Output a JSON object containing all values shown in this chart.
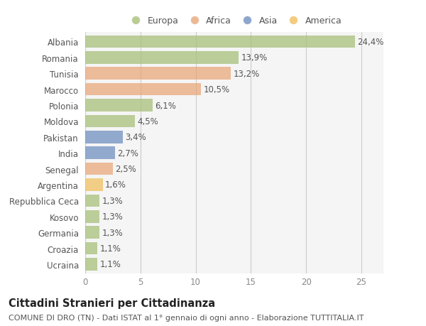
{
  "categories": [
    "Albania",
    "Romania",
    "Tunisia",
    "Marocco",
    "Polonia",
    "Moldova",
    "Pakistan",
    "India",
    "Senegal",
    "Argentina",
    "Repubblica Ceca",
    "Kosovo",
    "Germania",
    "Croazia",
    "Ucraina"
  ],
  "values": [
    24.4,
    13.9,
    13.2,
    10.5,
    6.1,
    4.5,
    3.4,
    2.7,
    2.5,
    1.6,
    1.3,
    1.3,
    1.3,
    1.1,
    1.1
  ],
  "labels": [
    "24,4%",
    "13,9%",
    "13,2%",
    "10,5%",
    "6,1%",
    "4,5%",
    "3,4%",
    "2,7%",
    "2,5%",
    "1,6%",
    "1,3%",
    "1,3%",
    "1,3%",
    "1,1%",
    "1,1%"
  ],
  "colors": [
    "#a8c07a",
    "#a8c07a",
    "#e8a87c",
    "#e8a87c",
    "#a8c07a",
    "#a8c07a",
    "#7090c0",
    "#7090c0",
    "#e8a87c",
    "#f0c060",
    "#a8c07a",
    "#a8c07a",
    "#a8c07a",
    "#a8c07a",
    "#a8c07a"
  ],
  "legend_labels": [
    "Europa",
    "Africa",
    "Asia",
    "America"
  ],
  "legend_colors": [
    "#a8c07a",
    "#e8a87c",
    "#7090c0",
    "#f0c060"
  ],
  "title": "Cittadini Stranieri per Cittadinanza",
  "subtitle": "COMUNE DI DRO (TN) - Dati ISTAT al 1° gennaio di ogni anno - Elaborazione TUTTITALIA.IT",
  "xlim": [
    0,
    27
  ],
  "xticks": [
    0,
    5,
    10,
    15,
    20,
    25
  ],
  "background_color": "#ffffff",
  "plot_bg_color": "#f5f5f5",
  "bar_height": 0.78,
  "title_fontsize": 10.5,
  "subtitle_fontsize": 8,
  "tick_fontsize": 8.5,
  "label_fontsize": 8.5,
  "legend_fontsize": 9,
  "ytick_fontsize": 8.5
}
